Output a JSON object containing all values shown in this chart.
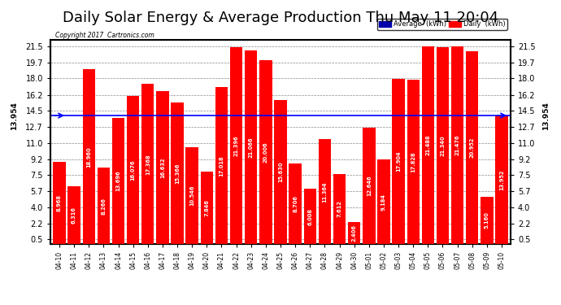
{
  "title": "Daily Solar Energy & Average Production Thu May 11 20:04",
  "copyright": "Copyright 2017  Cartronics.com",
  "average_line": 13.954,
  "average_line_color": "#0000FF",
  "bar_color": "#FF0000",
  "background_color": "#FFFFFF",
  "plot_bg_color": "#FFFFFF",
  "grid_color": "#888888",
  "yticks": [
    0.5,
    2.2,
    4.0,
    5.7,
    7.5,
    9.2,
    11.0,
    12.7,
    14.5,
    16.2,
    18.0,
    19.7,
    21.5
  ],
  "ylim": [
    0.0,
    22.2
  ],
  "categories": [
    "04-10",
    "04-11",
    "04-12",
    "04-13",
    "04-14",
    "04-15",
    "04-16",
    "04-17",
    "04-18",
    "04-19",
    "04-20",
    "04-21",
    "04-22",
    "04-23",
    "04-24",
    "04-25",
    "04-26",
    "04-27",
    "04-28",
    "04-29",
    "04-30",
    "05-01",
    "05-02",
    "05-03",
    "05-04",
    "05-05",
    "05-06",
    "05-07",
    "05-08",
    "05-09",
    "05-10"
  ],
  "values": [
    8.968,
    6.316,
    18.96,
    8.266,
    13.696,
    16.076,
    17.368,
    16.632,
    15.366,
    10.546,
    7.846,
    17.018,
    21.396,
    21.066,
    20.006,
    15.63,
    8.706,
    6.008,
    11.364,
    7.612,
    2.406,
    12.646,
    9.184,
    17.904,
    17.828,
    21.488,
    21.34,
    21.476,
    20.952,
    5.16,
    13.952
  ],
  "bar_labels": [
    "8.968",
    "6.316",
    "18.960",
    "8.266",
    "13.696",
    "16.076",
    "17.368",
    "16.632",
    "15.366",
    "10.546",
    "7.846",
    "17.018",
    "21.396",
    "21.066",
    "20.006",
    "15.630",
    "8.706",
    "6.008",
    "11.364",
    "7.612",
    "2.406",
    "12.646",
    "9.184",
    "17.904",
    "17.828",
    "21.488",
    "21.340",
    "21.476",
    "20.952",
    "5.160",
    "13.952"
  ],
  "legend_avg_color": "#0000AA",
  "legend_daily_color": "#FF0000",
  "legend_avg_label": "Average  (kWh)",
  "legend_daily_label": "Daily  (kWh)",
  "avg_label_text": "13.954",
  "title_fontsize": 13
}
